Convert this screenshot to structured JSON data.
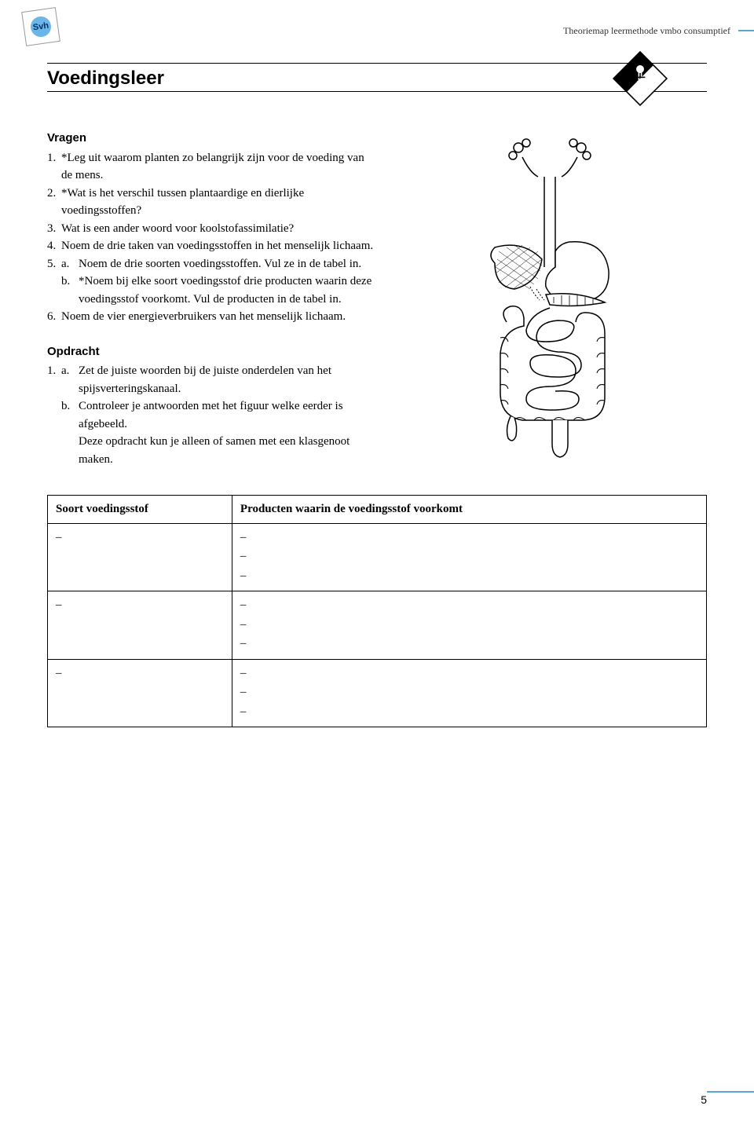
{
  "header": {
    "logo_text": "Svh",
    "running_head": "Theoriemap leermethode vmbo consumptief"
  },
  "chapter": {
    "title": "Voedingsleer"
  },
  "vragen": {
    "heading": "Vragen",
    "items": [
      {
        "num": "1.",
        "text": "*Leg uit waarom planten zo belangrijk zijn voor de voeding van de mens."
      },
      {
        "num": "2.",
        "text": "*Wat is het verschil tussen plantaardige en dier­lijke voedingsstoffen?"
      },
      {
        "num": "3.",
        "text": "Wat is een ander woord voor koolstofassimilatie?"
      },
      {
        "num": "4.",
        "text": "Noem de drie taken van voedingsstoffen in het menselijk lichaam."
      },
      {
        "num": "5.",
        "subs": [
          {
            "letter": "a.",
            "text": "Noem de drie soorten voedingsstoffen. Vul ze in de tabel in."
          },
          {
            "letter": "b.",
            "text": "*Noem bij elke soort voedingsstof drie produc­ten waarin deze voedingsstof voorkomt. Vul de producten in de tabel in."
          }
        ]
      },
      {
        "num": "6.",
        "text": "Noem de vier energieverbruikers van het mense­lijk lichaam."
      }
    ]
  },
  "opdracht": {
    "heading": "Opdracht",
    "items": [
      {
        "num": "1.",
        "subs": [
          {
            "letter": "a.",
            "text": "Zet de juiste woorden bij de juiste onderdelen van het spijsverteringskanaal."
          },
          {
            "letter": "b.",
            "text": "Controleer je antwoorden met het figuur wel­ke eerder is afgebeeld."
          }
        ],
        "trailing": "Deze opdracht kun je alleen of samen met een klasgenoot maken."
      }
    ]
  },
  "table": {
    "col_a_header": "Soort voedingsstof",
    "col_b_header": "Producten waarin de voedingsstof voorkomt",
    "rows": [
      {
        "a": [
          "–"
        ],
        "b": [
          "–",
          "–",
          "–"
        ]
      },
      {
        "a": [
          "–"
        ],
        "b": [
          "–",
          "–",
          "–"
        ]
      },
      {
        "a": [
          "–"
        ],
        "b": [
          "–",
          "–",
          "–"
        ]
      }
    ]
  },
  "page_number": "5",
  "colors": {
    "accent": "#5aa6d6",
    "logo_fill": "#6bb5e8"
  }
}
